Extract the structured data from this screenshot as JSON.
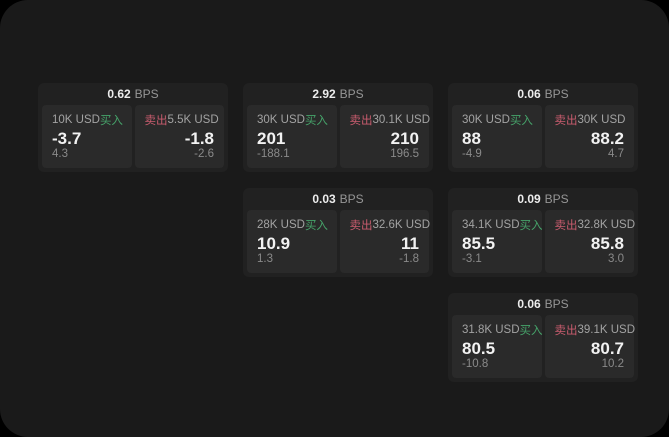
{
  "screen": {
    "background": "#1a1a1a",
    "outer_background": "#000000"
  },
  "colors": {
    "buy_green": "#46a36a",
    "sell_red": "#c95c6e",
    "card_bg": "#212121",
    "panel_bg": "#2a2a2a"
  },
  "cards": [
    {
      "spread": "0.62",
      "unit": "BPS",
      "buy": {
        "amount": "10K USD",
        "tag": "买入",
        "price": "-3.7",
        "sub": "4.3"
      },
      "sell": {
        "tag": "卖出",
        "amount": "5.5K USD",
        "price": "-1.8",
        "sub": "-2.6"
      }
    },
    {
      "spread": "2.92",
      "unit": "BPS",
      "buy": {
        "amount": "30K USD",
        "tag": "买入",
        "price": "201",
        "sub": "-188.1"
      },
      "sell": {
        "tag": "卖出",
        "amount": "30.1K USD",
        "price": "210",
        "sub": "196.5"
      }
    },
    {
      "spread": "0.06",
      "unit": "BPS",
      "buy": {
        "amount": "30K USD",
        "tag": "买入",
        "price": "88",
        "sub": "-4.9"
      },
      "sell": {
        "tag": "卖出",
        "amount": "30K USD",
        "price": "88.2",
        "sub": "4.7"
      }
    },
    {
      "spread": "0.03",
      "unit": "BPS",
      "buy": {
        "amount": "28K USD",
        "tag": "买入",
        "price": "10.9",
        "sub": "1.3"
      },
      "sell": {
        "tag": "卖出",
        "amount": "32.6K USD",
        "price": "11",
        "sub": "-1.8"
      }
    },
    {
      "spread": "0.09",
      "unit": "BPS",
      "buy": {
        "amount": "34.1K USD",
        "tag": "买入",
        "price": "85.5",
        "sub": "-3.1"
      },
      "sell": {
        "tag": "卖出",
        "amount": "32.8K USD",
        "price": "85.8",
        "sub": "3.0"
      }
    },
    {
      "spread": "0.06",
      "unit": "BPS",
      "buy": {
        "amount": "31.8K USD",
        "tag": "买入",
        "price": "80.5",
        "sub": "-10.8"
      },
      "sell": {
        "tag": "卖出",
        "amount": "39.1K USD",
        "price": "80.7",
        "sub": "10.2"
      }
    }
  ]
}
